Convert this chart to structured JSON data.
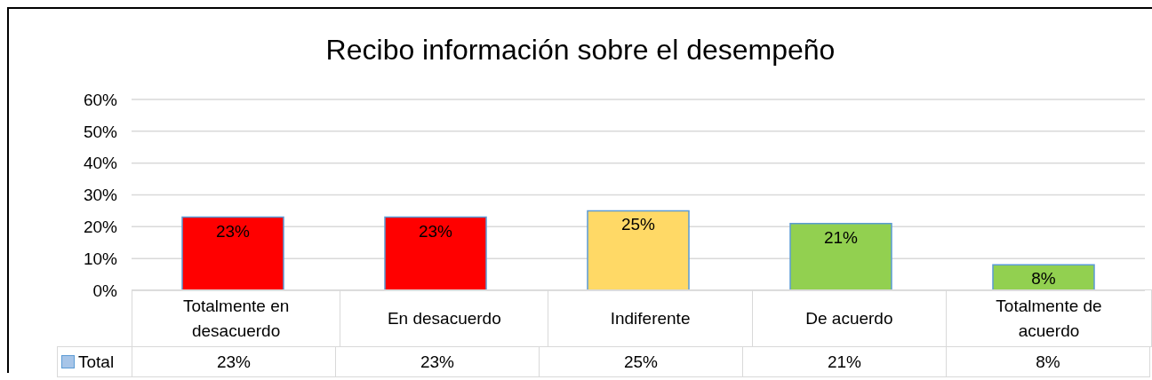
{
  "chart_data": {
    "type": "bar",
    "title": "Recibo información sobre el desempeño",
    "categories": [
      "Totalmente en desacuerdo",
      "En desacuerdo",
      "Indiferente",
      "De acuerdo",
      "Totalmente de acuerdo"
    ],
    "series": [
      {
        "name": "Total",
        "color": "#a7c5e8",
        "colors": [
          "#ff0000",
          "#ff0000",
          "#ffd966",
          "#92d050",
          "#92d050"
        ],
        "values": [
          23,
          23,
          25,
          21,
          8
        ],
        "value_labels": [
          "23%",
          "23%",
          "25%",
          "21%",
          "8%"
        ]
      }
    ],
    "ylim": [
      0,
      60
    ],
    "yticks": [
      {
        "value": 0,
        "label": "0%"
      },
      {
        "value": 10,
        "label": "10%"
      },
      {
        "value": 20,
        "label": "20%"
      },
      {
        "value": 30,
        "label": "30%"
      },
      {
        "value": 40,
        "label": "40%"
      },
      {
        "value": 50,
        "label": "50%"
      },
      {
        "value": 60,
        "label": "60%"
      }
    ],
    "grid": "y",
    "legend": "bottom"
  }
}
